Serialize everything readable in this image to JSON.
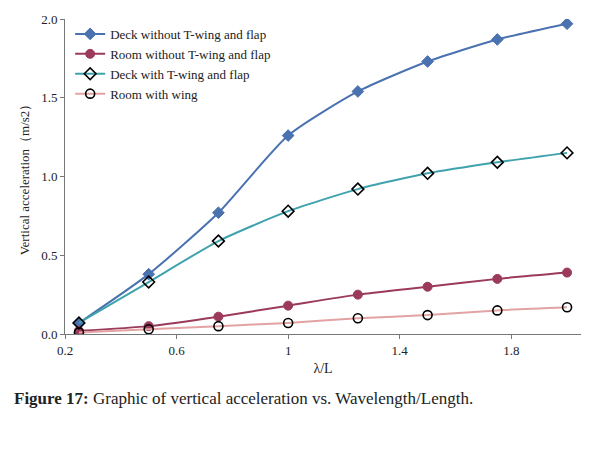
{
  "chart_data": {
    "type": "line",
    "x_label": "λ/L",
    "y_label": "Vertical acceleration（m/s2）",
    "x": [
      0.25,
      0.5,
      0.75,
      1.0,
      1.25,
      1.5,
      1.75,
      2.0
    ],
    "series": [
      {
        "name": "Deck without T-wing and flap",
        "color": "#4a72b0",
        "marker": "diamond",
        "line_style": "solid",
        "values": [
          0.07,
          0.38,
          0.77,
          1.26,
          1.54,
          1.73,
          1.87,
          1.97
        ]
      },
      {
        "name": "Room without T-wing and flap",
        "color": "#9b3a5a",
        "marker": "circle",
        "line_style": "solid",
        "values": [
          0.02,
          0.05,
          0.11,
          0.18,
          0.25,
          0.3,
          0.35,
          0.39
        ]
      },
      {
        "name": "Deck with T-wing and flap",
        "color": "#3fa3ad",
        "marker": "diamond-open",
        "line_style": "solid",
        "values": [
          0.07,
          0.33,
          0.59,
          0.78,
          0.92,
          1.02,
          1.09,
          1.15
        ]
      },
      {
        "name": "Room with wing",
        "color": "#e3a3a3",
        "marker": "circle-open",
        "line_style": "solid",
        "values": [
          0.01,
          0.03,
          0.05,
          0.07,
          0.1,
          0.12,
          0.15,
          0.17
        ]
      }
    ],
    "xlim": [
      0.2,
      2.05
    ],
    "xticks": [
      0.2,
      0.6,
      1,
      1.4,
      1.8
    ],
    "ylim": [
      0,
      2.0
    ],
    "yticks": [
      {
        "value": 0,
        "label": "0.0"
      },
      0.5,
      {
        "value": 1,
        "label": "1.0"
      },
      1.5,
      {
        "value": 2,
        "label": "2.0"
      }
    ],
    "grid": false,
    "legend": "upper left",
    "caption": {
      "label": "Figure 17:",
      "text": "Graphic of vertical acceleration vs. Wavelength/Length."
    }
  }
}
